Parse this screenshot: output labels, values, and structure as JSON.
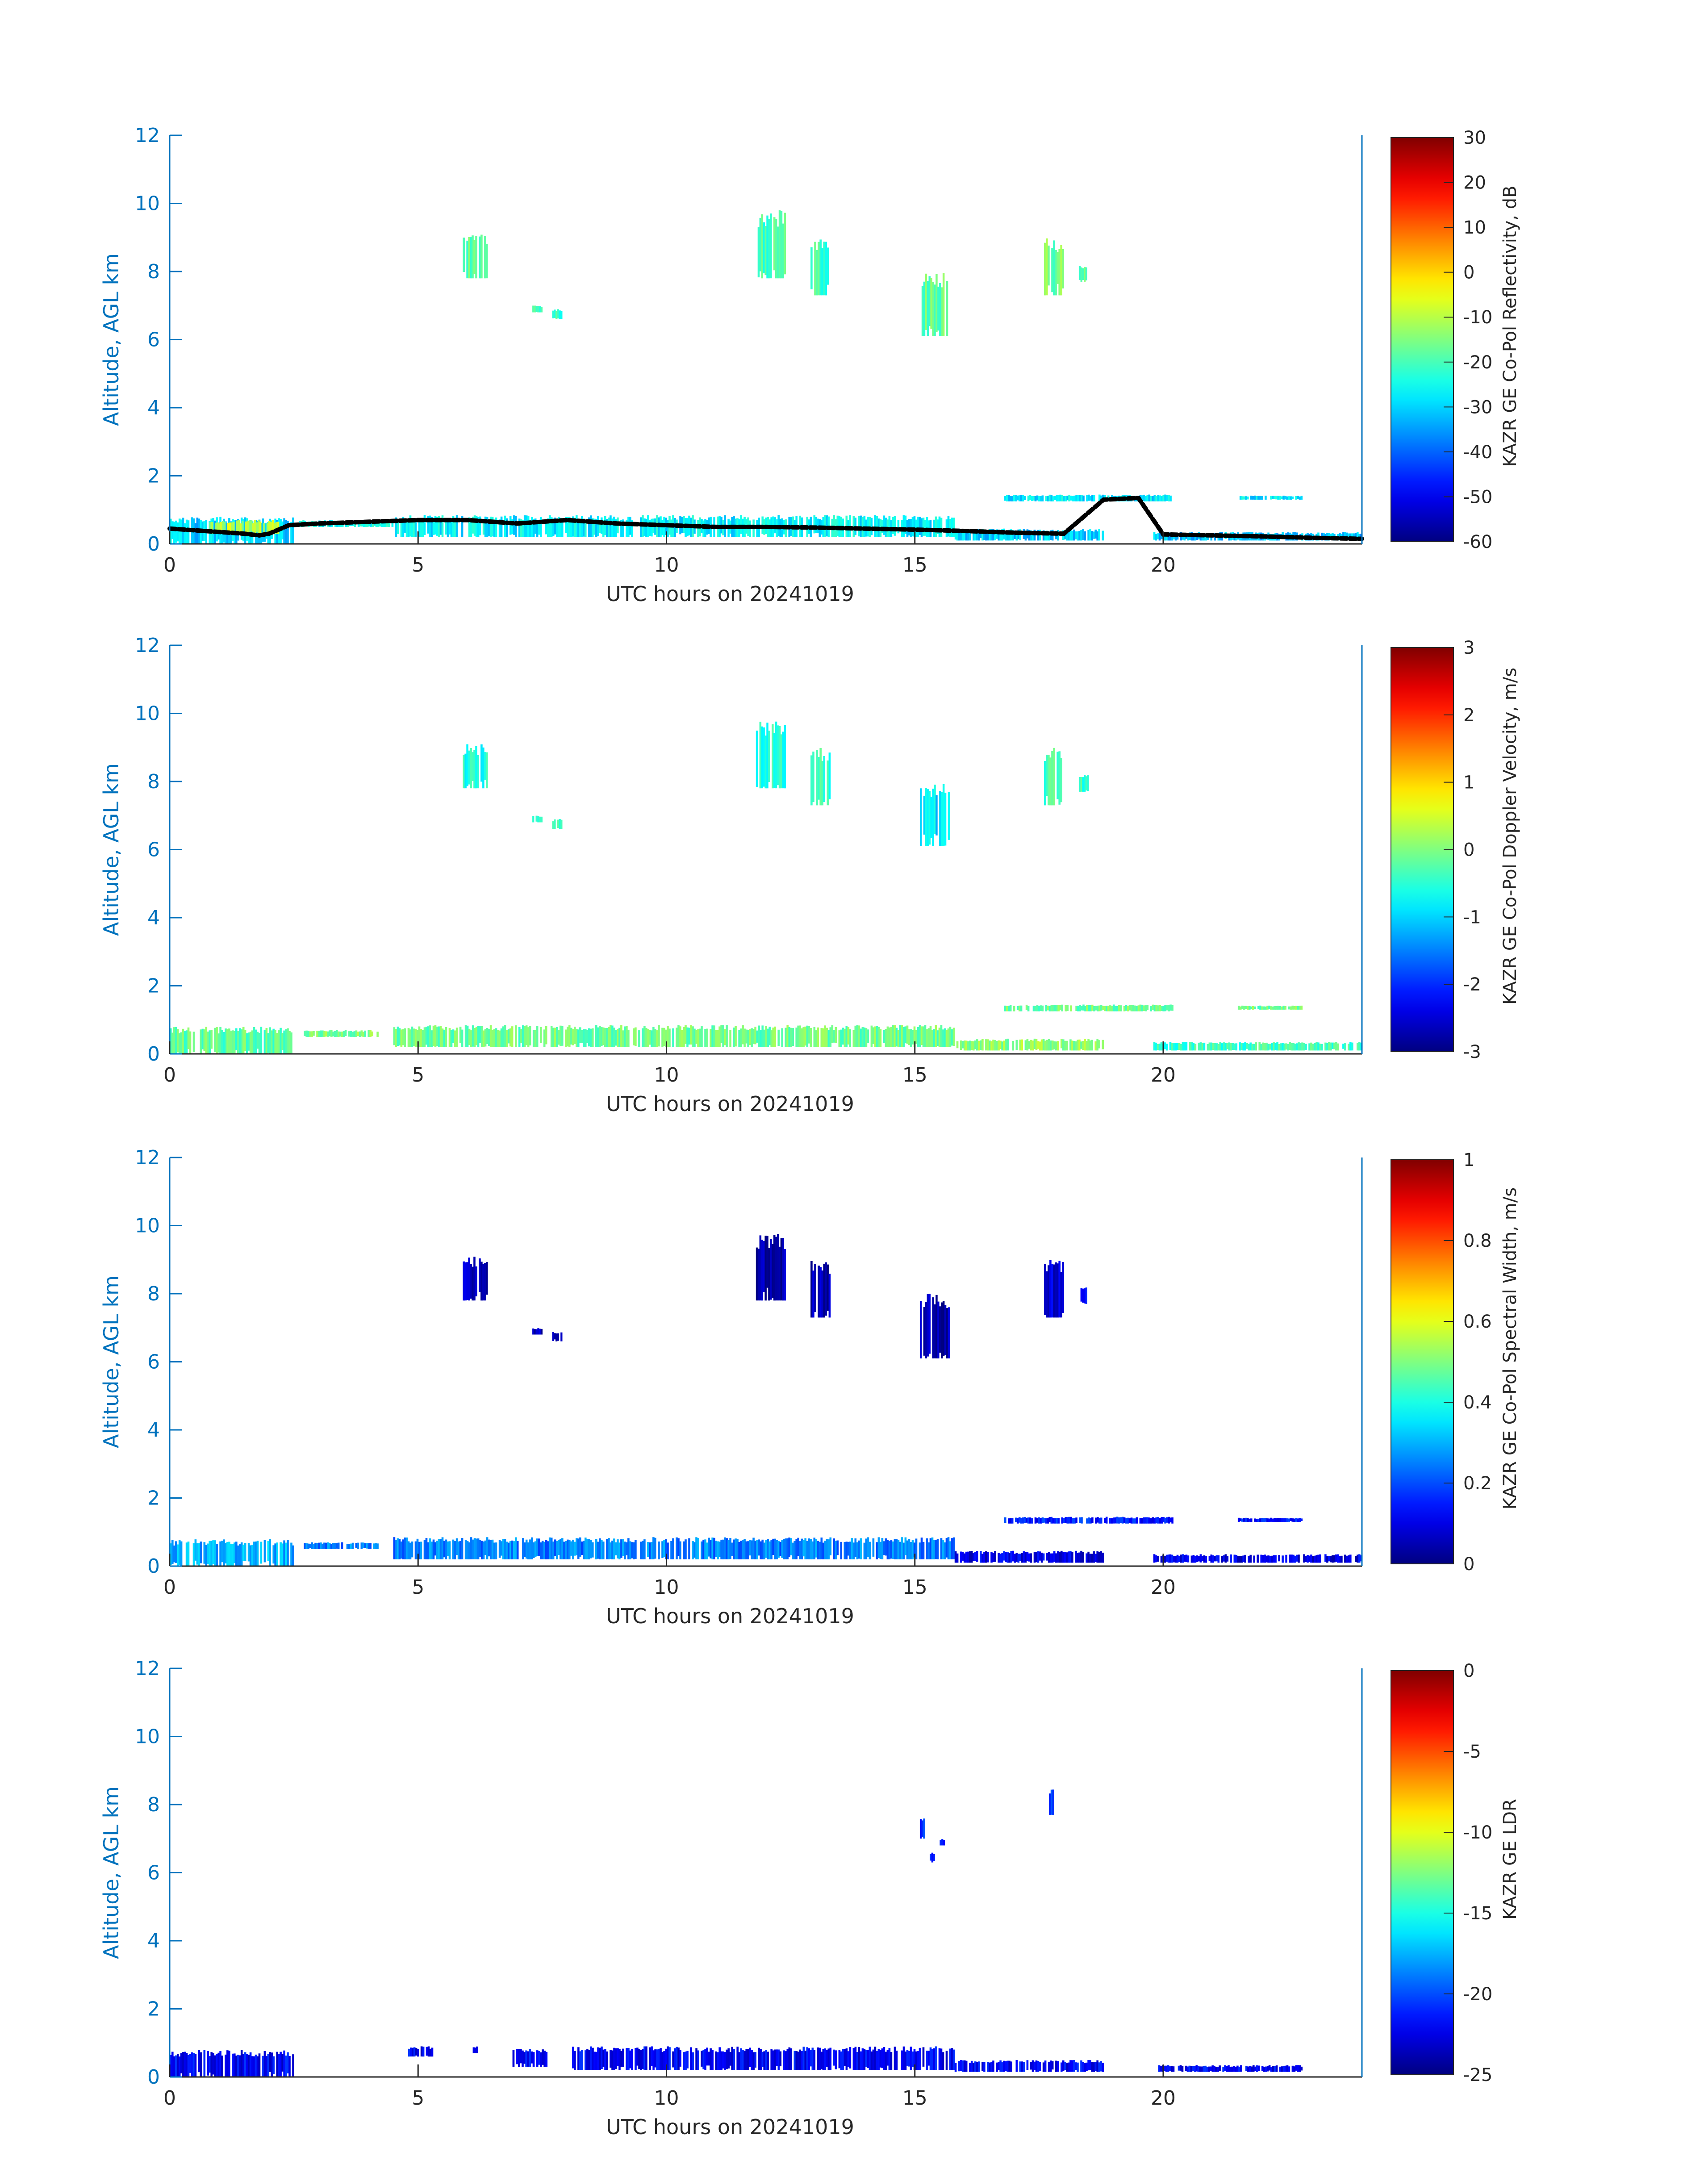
{
  "figure": {
    "colors": {
      "axis_blue": "#0072BD",
      "tick_text": "#262626",
      "ground_line": "#000000",
      "colorbar_map": "jet"
    }
  },
  "chart_data": [
    {
      "type": "heatmap",
      "xlabel": "UTC hours on 20241019",
      "ylabel": "Altitude, AGL km",
      "colorbar_label": "KAZR GE Co-Pol Reflectivity, dB",
      "xlim": [
        0,
        24
      ],
      "ylim": [
        0,
        12
      ],
      "xticks": [
        0,
        5,
        10,
        15,
        20
      ],
      "yticks": [
        0,
        2,
        4,
        6,
        8,
        10,
        12
      ],
      "clim": [
        -60,
        30
      ],
      "cticks": [
        -60,
        -50,
        -40,
        -30,
        -20,
        -10,
        0,
        10,
        20,
        30
      ],
      "grid": false,
      "ground_line": [
        [
          0,
          0.45
        ],
        [
          0.5,
          0.4
        ],
        [
          1,
          0.35
        ],
        [
          1.5,
          0.3
        ],
        [
          1.8,
          0.25
        ],
        [
          2,
          0.3
        ],
        [
          2.4,
          0.55
        ],
        [
          3,
          0.6
        ],
        [
          4,
          0.65
        ],
        [
          5,
          0.7
        ],
        [
          6,
          0.7
        ],
        [
          6.5,
          0.65
        ],
        [
          7,
          0.6
        ],
        [
          7.5,
          0.65
        ],
        [
          8,
          0.7
        ],
        [
          9,
          0.6
        ],
        [
          10,
          0.55
        ],
        [
          11,
          0.5
        ],
        [
          12,
          0.5
        ],
        [
          13,
          0.48
        ],
        [
          14,
          0.45
        ],
        [
          15,
          0.42
        ],
        [
          16,
          0.38
        ],
        [
          17,
          0.33
        ],
        [
          18,
          0.3
        ],
        [
          18.8,
          1.3
        ],
        [
          19.5,
          1.35
        ],
        [
          20,
          0.28
        ],
        [
          21,
          0.25
        ],
        [
          22,
          0.22
        ],
        [
          23,
          0.18
        ],
        [
          24,
          0.15
        ]
      ],
      "features": [
        {
          "t0": 0,
          "t1": 2.5,
          "z0": 0.0,
          "z1": 0.8,
          "value": -30
        },
        {
          "t0": 0.8,
          "t1": 2.2,
          "z0": 0.3,
          "z1": 0.7,
          "value": -10
        },
        {
          "t0": 2.6,
          "t1": 4.5,
          "z0": 0.5,
          "z1": 0.7,
          "value": -25
        },
        {
          "t0": 4.5,
          "t1": 15.8,
          "z0": 0.2,
          "z1": 0.85,
          "value": -27
        },
        {
          "t0": 15.8,
          "t1": 18.8,
          "z0": 0.1,
          "z1": 0.45,
          "value": -30
        },
        {
          "t0": 19.8,
          "t1": 24,
          "z0": 0.1,
          "z1": 0.35,
          "value": -32
        },
        {
          "t0": 16.8,
          "t1": 20.2,
          "z0": 1.25,
          "z1": 1.45,
          "value": -28
        },
        {
          "t0": 21.5,
          "t1": 22.8,
          "z0": 1.3,
          "z1": 1.42,
          "value": -28
        },
        {
          "t0": 5.9,
          "t1": 6.4,
          "z0": 7.8,
          "z1": 9.1,
          "value": -18
        },
        {
          "t0": 7.3,
          "t1": 7.5,
          "z0": 6.8,
          "z1": 7.0,
          "value": -22
        },
        {
          "t0": 7.7,
          "t1": 7.9,
          "z0": 6.6,
          "z1": 6.9,
          "value": -22
        },
        {
          "t0": 11.8,
          "t1": 12.4,
          "z0": 7.8,
          "z1": 9.8,
          "value": -20
        },
        {
          "t0": 12.9,
          "t1": 13.3,
          "z0": 7.3,
          "z1": 9.0,
          "value": -20
        },
        {
          "t0": 15.1,
          "t1": 15.7,
          "z0": 6.1,
          "z1": 8.0,
          "value": -18
        },
        {
          "t0": 17.6,
          "t1": 18.0,
          "z0": 7.3,
          "z1": 9.0,
          "value": -16
        },
        {
          "t0": 18.3,
          "t1": 18.5,
          "z0": 7.7,
          "z1": 8.2,
          "value": -18
        }
      ]
    },
    {
      "type": "heatmap",
      "xlabel": "UTC hours on 20241019",
      "ylabel": "Altitude, AGL km",
      "colorbar_label": "KAZR GE Co-Pol Doppler Velocity, m/s",
      "xlim": [
        0,
        24
      ],
      "ylim": [
        0,
        12
      ],
      "xticks": [
        0,
        5,
        10,
        15,
        20
      ],
      "yticks": [
        0,
        2,
        4,
        6,
        8,
        10,
        12
      ],
      "clim": [
        -3,
        3
      ],
      "cticks": [
        -3,
        -2,
        -1,
        0,
        1,
        2,
        3
      ],
      "grid": false,
      "features": [
        {
          "t0": 0,
          "t1": 2.5,
          "z0": 0.0,
          "z1": 0.8,
          "value": -0.2
        },
        {
          "t0": 2.7,
          "t1": 4.2,
          "z0": 0.5,
          "z1": 0.7,
          "value": 0.0
        },
        {
          "t0": 4.5,
          "t1": 15.8,
          "z0": 0.2,
          "z1": 0.85,
          "value": -0.1
        },
        {
          "t0": 15.8,
          "t1": 18.8,
          "z0": 0.1,
          "z1": 0.45,
          "value": 0.1
        },
        {
          "t0": 19.8,
          "t1": 24,
          "z0": 0.1,
          "z1": 0.35,
          "value": -0.4
        },
        {
          "t0": 16.8,
          "t1": 20.2,
          "z0": 1.25,
          "z1": 1.45,
          "value": -0.1
        },
        {
          "t0": 21.5,
          "t1": 22.8,
          "z0": 1.3,
          "z1": 1.42,
          "value": -0.1
        },
        {
          "t0": 5.9,
          "t1": 6.4,
          "z0": 7.8,
          "z1": 9.1,
          "value": -0.6
        },
        {
          "t0": 7.3,
          "t1": 7.5,
          "z0": 6.8,
          "z1": 7.0,
          "value": -0.3
        },
        {
          "t0": 7.7,
          "t1": 7.9,
          "z0": 6.6,
          "z1": 6.9,
          "value": -0.3
        },
        {
          "t0": 11.8,
          "t1": 12.4,
          "z0": 7.8,
          "z1": 9.8,
          "value": -0.5
        },
        {
          "t0": 12.9,
          "t1": 13.3,
          "z0": 7.3,
          "z1": 9.0,
          "value": -0.4
        },
        {
          "t0": 15.1,
          "t1": 15.7,
          "z0": 6.1,
          "z1": 8.0,
          "value": -0.9
        },
        {
          "t0": 17.6,
          "t1": 18.0,
          "z0": 7.3,
          "z1": 9.0,
          "value": -0.3
        },
        {
          "t0": 18.3,
          "t1": 18.5,
          "z0": 7.7,
          "z1": 8.2,
          "value": -0.4
        }
      ]
    },
    {
      "type": "heatmap",
      "xlabel": "UTC hours on 20241019",
      "ylabel": "Altitude, AGL km",
      "colorbar_label": "KAZR GE Co-Pol Spectral Width, m/s",
      "xlim": [
        0,
        24
      ],
      "ylim": [
        0,
        12
      ],
      "xticks": [
        0,
        5,
        10,
        15,
        20
      ],
      "yticks": [
        0,
        2,
        4,
        6,
        8,
        10,
        12
      ],
      "clim": [
        0,
        1
      ],
      "cticks": [
        0,
        0.2,
        0.4,
        0.6,
        0.8,
        1
      ],
      "grid": false,
      "features": [
        {
          "t0": 0,
          "t1": 2.5,
          "z0": 0.0,
          "z1": 0.8,
          "value": 0.3
        },
        {
          "t0": 2.7,
          "t1": 4.2,
          "z0": 0.5,
          "z1": 0.7,
          "value": 0.25
        },
        {
          "t0": 4.5,
          "t1": 15.8,
          "z0": 0.2,
          "z1": 0.85,
          "value": 0.25
        },
        {
          "t0": 15.8,
          "t1": 18.8,
          "z0": 0.1,
          "z1": 0.45,
          "value": 0.1
        },
        {
          "t0": 19.8,
          "t1": 24,
          "z0": 0.1,
          "z1": 0.35,
          "value": 0.1
        },
        {
          "t0": 16.8,
          "t1": 20.2,
          "z0": 1.25,
          "z1": 1.45,
          "value": 0.15
        },
        {
          "t0": 21.5,
          "t1": 22.8,
          "z0": 1.3,
          "z1": 1.42,
          "value": 0.15
        },
        {
          "t0": 5.9,
          "t1": 6.4,
          "z0": 7.8,
          "z1": 9.1,
          "value": 0.05
        },
        {
          "t0": 7.3,
          "t1": 7.5,
          "z0": 6.8,
          "z1": 7.0,
          "value": 0.05
        },
        {
          "t0": 7.7,
          "t1": 7.9,
          "z0": 6.6,
          "z1": 6.9,
          "value": 0.05
        },
        {
          "t0": 11.8,
          "t1": 12.4,
          "z0": 7.8,
          "z1": 9.8,
          "value": 0.05
        },
        {
          "t0": 12.9,
          "t1": 13.3,
          "z0": 7.3,
          "z1": 9.0,
          "value": 0.05
        },
        {
          "t0": 15.1,
          "t1": 15.7,
          "z0": 6.1,
          "z1": 8.0,
          "value": 0.05
        },
        {
          "t0": 17.6,
          "t1": 18.0,
          "z0": 7.3,
          "z1": 9.0,
          "value": 0.1
        },
        {
          "t0": 18.3,
          "t1": 18.5,
          "z0": 7.7,
          "z1": 8.2,
          "value": 0.1
        }
      ]
    },
    {
      "type": "heatmap",
      "xlabel": "UTC hours on 20241019",
      "ylabel": "Altitude, AGL km",
      "colorbar_label": "KAZR GE LDR",
      "xlim": [
        0,
        24
      ],
      "ylim": [
        0,
        12
      ],
      "xticks": [
        0,
        5,
        10,
        15,
        20
      ],
      "yticks": [
        0,
        2,
        4,
        6,
        8,
        10,
        12
      ],
      "clim": [
        -25,
        0
      ],
      "cticks": [
        -25,
        -20,
        -15,
        -10,
        -5,
        0
      ],
      "grid": false,
      "features": [
        {
          "t0": 0,
          "t1": 2.5,
          "z0": 0.0,
          "z1": 0.8,
          "value": -22
        },
        {
          "t0": 4.8,
          "t1": 5.3,
          "z0": 0.6,
          "z1": 0.9,
          "value": -22
        },
        {
          "t0": 6.1,
          "t1": 6.2,
          "z0": 0.7,
          "z1": 0.9,
          "value": -22
        },
        {
          "t0": 6.9,
          "t1": 7.6,
          "z0": 0.3,
          "z1": 0.85,
          "value": -22
        },
        {
          "t0": 8.1,
          "t1": 15.8,
          "z0": 0.2,
          "z1": 0.9,
          "value": -22
        },
        {
          "t0": 15.8,
          "t1": 18.8,
          "z0": 0.15,
          "z1": 0.5,
          "value": -22
        },
        {
          "t0": 19.9,
          "t1": 22.8,
          "z0": 0.15,
          "z1": 0.35,
          "value": -22
        },
        {
          "t0": 15.1,
          "t1": 15.2,
          "z0": 7.0,
          "z1": 7.6,
          "value": -21
        },
        {
          "t0": 15.3,
          "t1": 15.4,
          "z0": 6.3,
          "z1": 6.6,
          "value": -21
        },
        {
          "t0": 15.5,
          "t1": 15.6,
          "z0": 6.8,
          "z1": 7.0,
          "value": -21
        },
        {
          "t0": 17.7,
          "t1": 17.8,
          "z0": 7.7,
          "z1": 8.5,
          "value": -21
        }
      ]
    }
  ]
}
